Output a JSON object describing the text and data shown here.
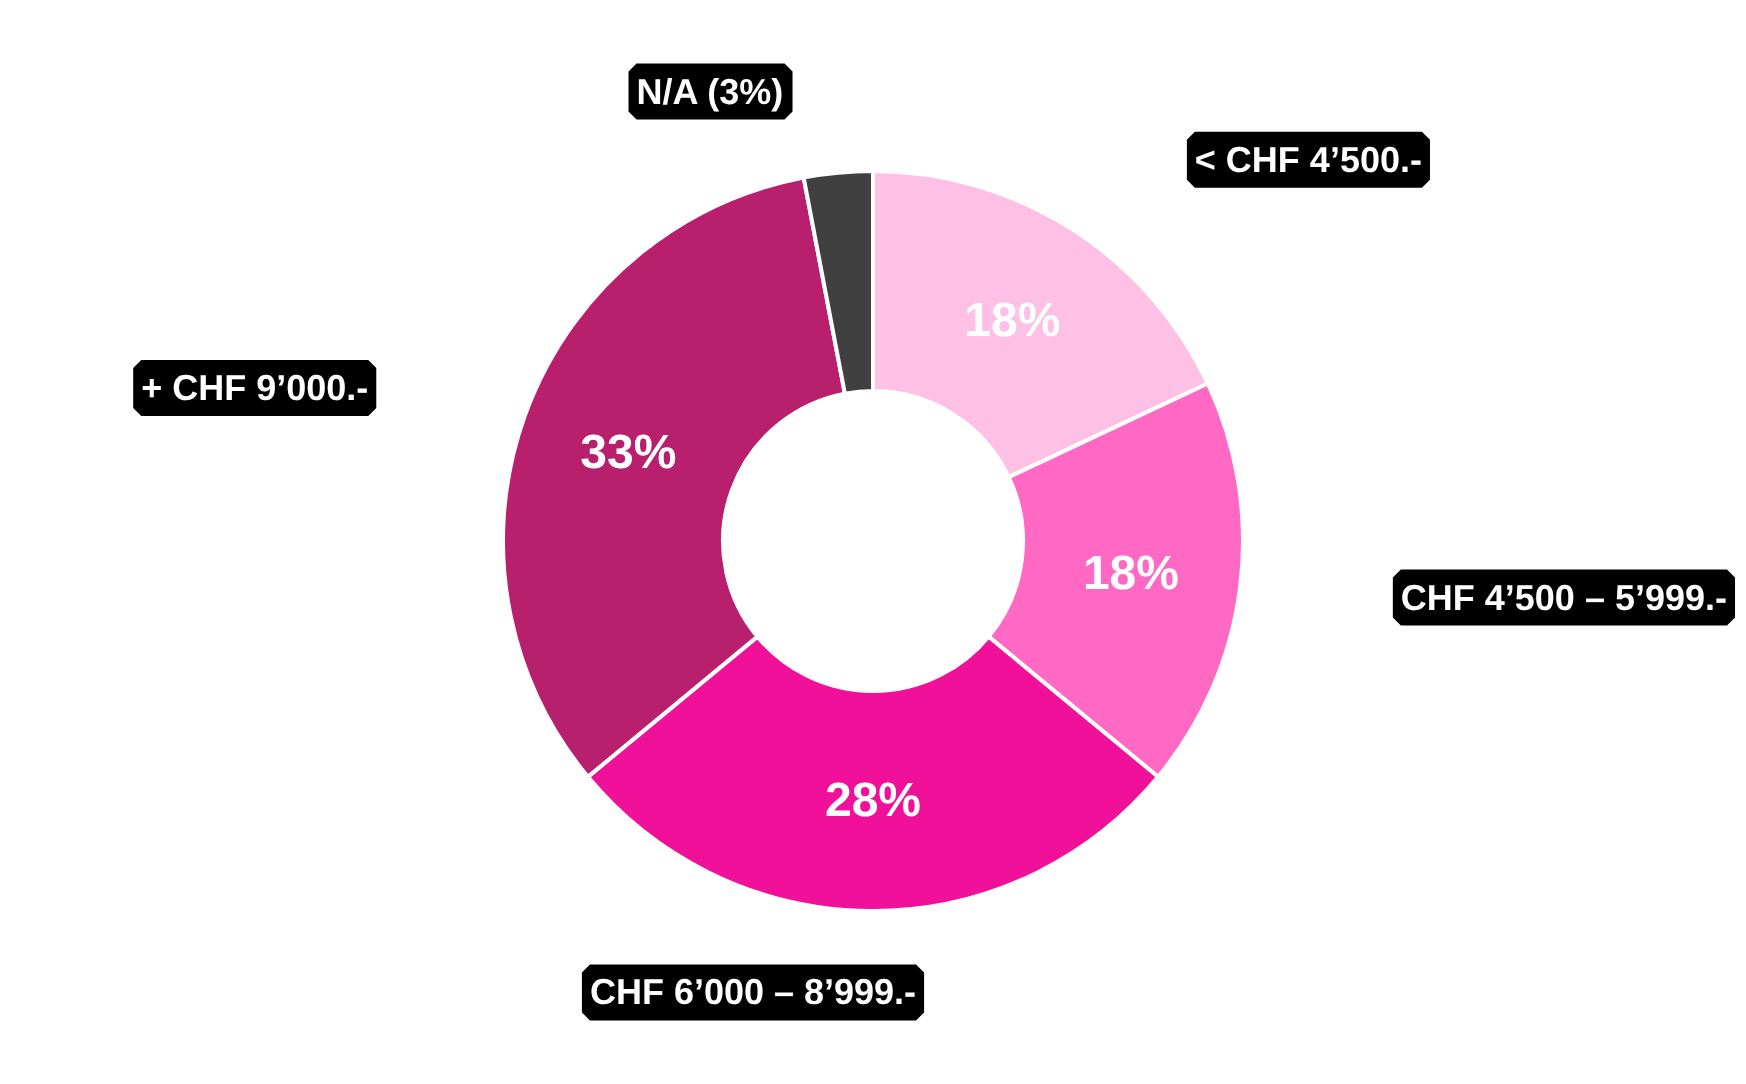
{
  "chart_data": {
    "type": "donut",
    "categories": [
      "< CHF 4’500.-",
      "CHF 4’500 – 5’999.-",
      "CHF 6’000 – 8’999.-",
      "+ CHF 9’000.-",
      "N/A (3%)"
    ],
    "values": [
      18,
      18,
      28,
      33,
      3
    ],
    "colors": [
      "#ffc0e6",
      "#ff69c3",
      "#f0109a",
      "#b8206e",
      "#404040"
    ],
    "value_labels": [
      "18%",
      "18%",
      "28%",
      "33%",
      null
    ]
  }
}
